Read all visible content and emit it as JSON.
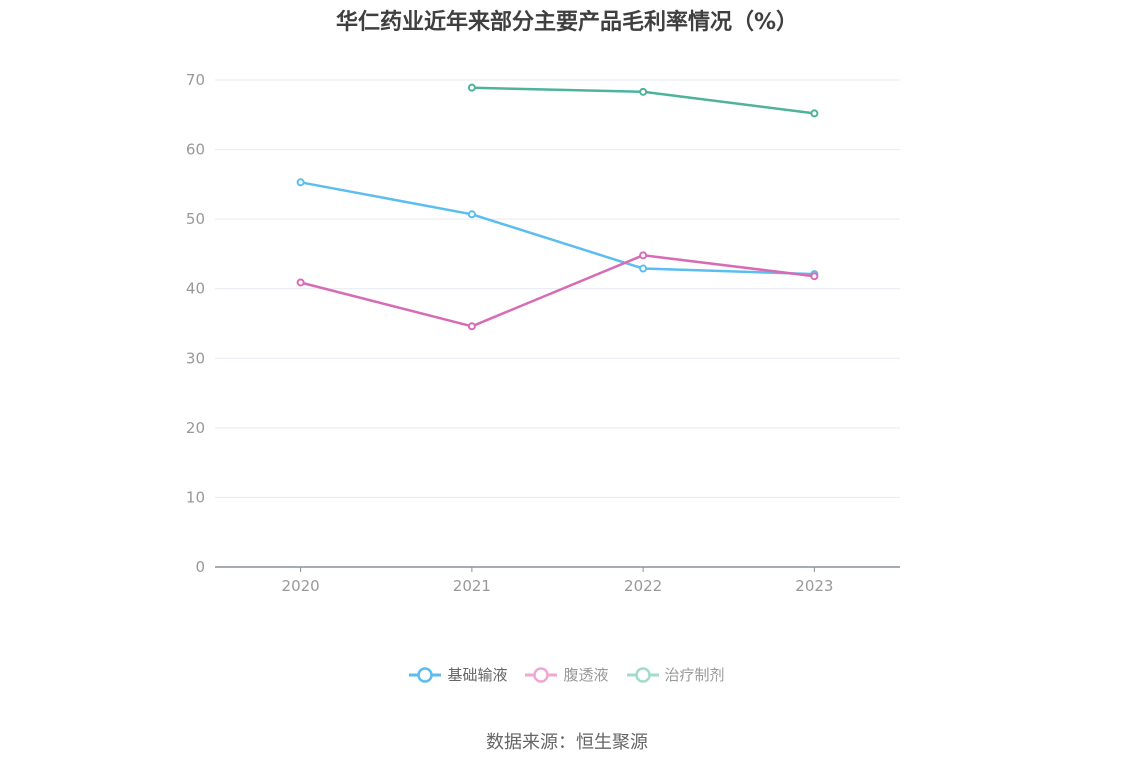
{
  "title": "华仁药业近年来部分主要产品毛利率情况（%）",
  "source": "数据来源：恒生聚源",
  "chart_data": {
    "type": "line",
    "title": "华仁药业近年来部分主要产品毛利率情况（%）",
    "categories": [
      "2020",
      "2021",
      "2022",
      "2023"
    ],
    "ylim": [
      0,
      70
    ],
    "yticks": [
      0,
      10,
      20,
      30,
      40,
      50,
      60,
      70
    ],
    "grid": true,
    "legend_position": "bottom",
    "series": [
      {
        "name": "基础输液",
        "color": "#5bbdf0",
        "values": [
          55.3,
          50.7,
          42.9,
          42.1
        ]
      },
      {
        "name": "腹透液",
        "color": "#d86bb5",
        "values": [
          40.9,
          34.6,
          44.8,
          41.8
        ]
      },
      {
        "name": "治疗制剂",
        "color": "#4db39b",
        "values": [
          null,
          68.9,
          68.3,
          65.2
        ]
      }
    ]
  },
  "legend": [
    {
      "label": "基础输液",
      "color": "#5bbdf0"
    },
    {
      "label": "腹透液",
      "color": "#f0a8d2"
    },
    {
      "label": "治疗制剂",
      "color": "#a0dcc9"
    }
  ]
}
